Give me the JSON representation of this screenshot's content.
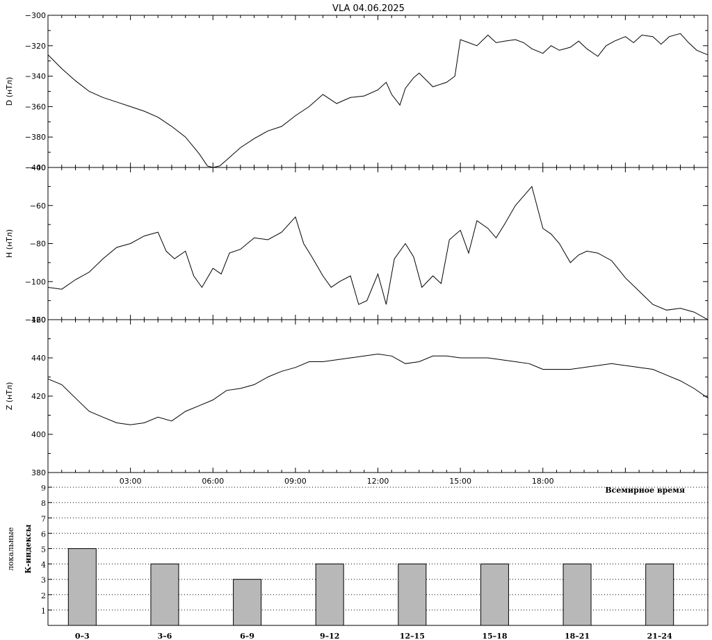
{
  "chart_data": [
    {
      "type": "line",
      "title": "VLA   04.06.2025",
      "ylabel": "D (нТл)",
      "yticks": [
        "−300",
        "−320",
        "−340",
        "−360",
        "−380",
        "−400"
      ],
      "ylim": [
        -400,
        -300
      ],
      "xlim": [
        0,
        24
      ],
      "x_unit": "hours UT",
      "series": [
        {
          "x": [
            0,
            0.5,
            1,
            1.5,
            2,
            2.5,
            3,
            3.5,
            4,
            4.5,
            5,
            5.5,
            5.8,
            6,
            6.25,
            6.5,
            7,
            7.5,
            8,
            8.5,
            9,
            9.5,
            10,
            10.5,
            11,
            11.5,
            12,
            12.3,
            12.5,
            12.8,
            13,
            13.3,
            13.5,
            14,
            14.5,
            14.8,
            15,
            15.3,
            15.6,
            16,
            16.3,
            16.6,
            17,
            17.3,
            17.6,
            18,
            18.3,
            18.6,
            19,
            19.3,
            19.6,
            20,
            20.3,
            20.6,
            21,
            21.3,
            21.6,
            22,
            22.3,
            22.6,
            23,
            23.3,
            23.6,
            24
          ],
          "y": [
            -326,
            -335,
            -343,
            -350,
            -354,
            -357,
            -360,
            -363,
            -367,
            -373,
            -380,
            -391,
            -399,
            -400,
            -399,
            -395,
            -387,
            -381,
            -376,
            -373,
            -366,
            -360,
            -352,
            -358,
            -354,
            -353,
            -349,
            -344,
            -352,
            -359,
            -348,
            -341,
            -338,
            -347,
            -344,
            -340,
            -316,
            -318,
            -320,
            -313,
            -318,
            -317,
            -316,
            -318,
            -322,
            -325,
            -320,
            -323,
            -321,
            -317,
            -322,
            -327,
            -320,
            -317,
            -314,
            -318,
            -313,
            -314,
            -319,
            -314,
            -312,
            -318,
            -323,
            -326
          ]
        }
      ]
    },
    {
      "type": "line",
      "ylabel": "H (нТл)",
      "yticks": [
        "−40",
        "−60",
        "−80",
        "−100",
        "−120"
      ],
      "ylim": [
        -120,
        -40
      ],
      "xlim": [
        0,
        24
      ],
      "x_unit": "hours UT",
      "series": [
        {
          "x": [
            0,
            0.5,
            1,
            1.5,
            2,
            2.5,
            3,
            3.5,
            4,
            4.3,
            4.6,
            5,
            5.3,
            5.6,
            6,
            6.3,
            6.6,
            7,
            7.5,
            8,
            8.5,
            9,
            9.3,
            9.6,
            10,
            10.3,
            10.6,
            11,
            11.3,
            11.6,
            12,
            12.3,
            12.6,
            13,
            13.3,
            13.6,
            14,
            14.3,
            14.6,
            15,
            15.3,
            15.6,
            16,
            16.3,
            16.6,
            17,
            17.3,
            17.6,
            18,
            18.3,
            18.6,
            19,
            19.3,
            19.6,
            20,
            20.5,
            21,
            21.5,
            22,
            22.5,
            23,
            23.5,
            24
          ],
          "y": [
            -103,
            -104,
            -99,
            -95,
            -88,
            -82,
            -80,
            -76,
            -74,
            -84,
            -88,
            -84,
            -97,
            -103,
            -93,
            -96,
            -85,
            -83,
            -77,
            -78,
            -74,
            -66,
            -80,
            -87,
            -97,
            -103,
            -100,
            -97,
            -112,
            -110,
            -96,
            -112,
            -88,
            -80,
            -87,
            -103,
            -97,
            -101,
            -78,
            -73,
            -85,
            -68,
            -72,
            -77,
            -70,
            -60,
            -55,
            -50,
            -72,
            -75,
            -80,
            -90,
            -86,
            -84,
            -85,
            -89,
            -98,
            -105,
            -112,
            -115,
            -114,
            -116,
            -120
          ]
        }
      ]
    },
    {
      "type": "line",
      "ylabel": "Z (нТл)",
      "yticks": [
        "460",
        "440",
        "420",
        "400",
        "380"
      ],
      "ylim": [
        380,
        460
      ],
      "xlim": [
        0,
        24
      ],
      "x_unit": "hours UT",
      "xticks": [
        "03:00",
        "06:00",
        "09:00",
        "12:00",
        "15:00",
        "18:00"
      ],
      "xlabel": "Всемирное время",
      "series": [
        {
          "x": [
            0,
            0.5,
            1,
            1.5,
            2,
            2.5,
            3,
            3.5,
            4,
            4.5,
            5,
            5.5,
            6,
            6.5,
            7,
            7.5,
            8,
            8.5,
            9,
            9.5,
            10,
            10.5,
            11,
            11.5,
            12,
            12.5,
            13,
            13.5,
            14,
            14.5,
            15,
            15.5,
            16,
            16.5,
            17,
            17.5,
            18,
            18.5,
            19,
            19.5,
            20,
            20.5,
            21,
            21.5,
            22,
            22.5,
            23,
            23.5,
            24
          ],
          "y": [
            429,
            426,
            419,
            412,
            409,
            406,
            405,
            406,
            409,
            407,
            412,
            415,
            418,
            423,
            424,
            426,
            430,
            433,
            435,
            438,
            438,
            439,
            440,
            441,
            442,
            441,
            437,
            438,
            441,
            441,
            440,
            440,
            440,
            439,
            438,
            437,
            434,
            434,
            434,
            435,
            436,
            437,
            436,
            435,
            434,
            431,
            428,
            424,
            419
          ]
        }
      ]
    },
    {
      "type": "bar",
      "ylabel_1": "локальные",
      "ylabel_2": "К-индексы",
      "ylim": [
        0,
        10
      ],
      "yticks": [
        "1",
        "2",
        "3",
        "4",
        "5",
        "6",
        "7",
        "8",
        "9"
      ],
      "grid": true,
      "categories": [
        "0–3",
        "3–6",
        "6–9",
        "9–12",
        "12–15",
        "15–18",
        "18–21",
        "21–24"
      ],
      "values": [
        5,
        4,
        3,
        4,
        4,
        4,
        4,
        4
      ],
      "bar_color": "#b8b8b8"
    }
  ]
}
